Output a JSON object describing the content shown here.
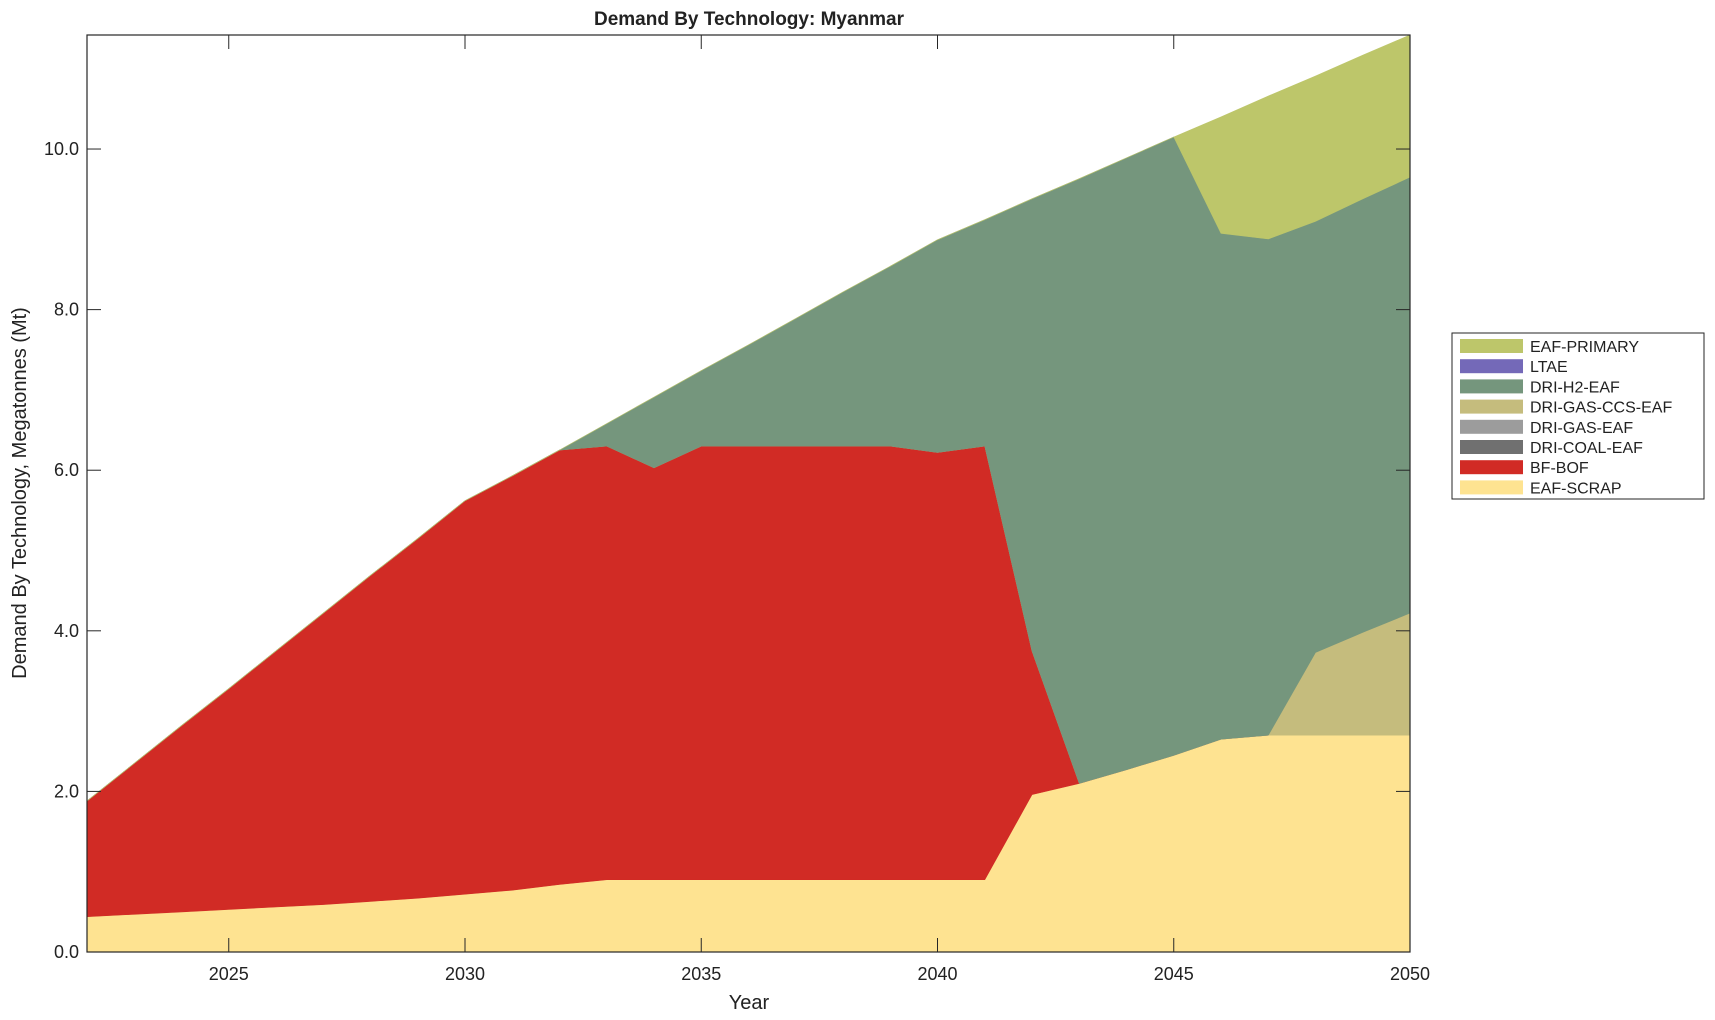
{
  "chart_data": {
    "type": "area",
    "stacked": true,
    "title": "Demand By Technology: Myanmar",
    "xlabel": "Year",
    "ylabel": "Demand By Technology, Megatonnes (Mt)",
    "xlim": [
      2022,
      2050
    ],
    "ylim": [
      0,
      11.42
    ],
    "xticks": [
      2025,
      2030,
      2035,
      2040,
      2045,
      2050
    ],
    "yticks": [
      0,
      2,
      4,
      6,
      8,
      10
    ],
    "ytick_labels": [
      "0.0",
      "2.0",
      "4.0",
      "6.0",
      "8.0",
      "10.0"
    ],
    "grid": false,
    "legend_placement": "outside-right",
    "x": [
      2022,
      2023,
      2024,
      2025,
      2026,
      2027,
      2028,
      2029,
      2030,
      2031,
      2032,
      2033,
      2034,
      2035,
      2036,
      2037,
      2038,
      2039,
      2040,
      2041,
      2042,
      2043,
      2044,
      2045,
      2046,
      2047,
      2048,
      2049,
      2050
    ],
    "series": [
      {
        "name": "EAF-SCRAP",
        "color": "#fee391",
        "values": [
          0.44,
          0.47,
          0.5,
          0.53,
          0.56,
          0.59,
          0.63,
          0.67,
          0.72,
          0.77,
          0.84,
          0.9,
          0.9,
          0.9,
          0.9,
          0.9,
          0.9,
          0.9,
          0.9,
          0.9,
          1.96,
          2.1,
          2.27,
          2.45,
          2.65,
          2.7,
          2.7,
          2.7,
          2.7
        ]
      },
      {
        "name": "BF-BOF",
        "color": "#d12b25",
        "values": [
          1.44,
          1.88,
          2.32,
          2.75,
          3.19,
          3.63,
          4.06,
          4.48,
          4.9,
          5.16,
          5.41,
          5.4,
          5.13,
          5.4,
          5.4,
          5.4,
          5.4,
          5.4,
          5.32,
          5.4,
          1.79,
          0,
          0,
          0,
          0,
          0,
          0,
          0,
          0
        ]
      },
      {
        "name": "DRI-COAL-EAF",
        "color": "#707070",
        "values": [
          0,
          0,
          0,
          0,
          0,
          0,
          0,
          0,
          0,
          0,
          0,
          0,
          0,
          0,
          0,
          0,
          0,
          0,
          0,
          0,
          0,
          0,
          0,
          0,
          0,
          0,
          0,
          0,
          0
        ]
      },
      {
        "name": "DRI-GAS-EAF",
        "color": "#9c9c9c",
        "values": [
          0,
          0,
          0,
          0,
          0,
          0,
          0,
          0,
          0,
          0,
          0,
          0,
          0,
          0,
          0,
          0,
          0,
          0,
          0,
          0,
          0,
          0,
          0,
          0,
          0,
          0,
          0,
          0,
          0
        ]
      },
      {
        "name": "DRI-GAS-CCS-EAF",
        "color": "#c5bc7d",
        "values": [
          0,
          0,
          0,
          0,
          0,
          0,
          0,
          0,
          0,
          0,
          0,
          0,
          0,
          0,
          0,
          0,
          0,
          0,
          0,
          0,
          0,
          0,
          0,
          0,
          0,
          0,
          1.03,
          1.28,
          1.52
        ]
      },
      {
        "name": "DRI-H2-EAF",
        "color": "#75967d",
        "values": [
          0,
          0,
          0,
          0,
          0,
          0,
          0,
          0,
          0,
          0,
          0,
          0.28,
          0.88,
          0.94,
          1.26,
          1.59,
          1.92,
          2.24,
          2.65,
          2.82,
          5.63,
          7.53,
          7.62,
          7.7,
          6.3,
          6.18,
          5.37,
          5.4,
          5.43
        ]
      },
      {
        "name": "LTAE",
        "color": "#7469b8",
        "values": [
          0,
          0,
          0,
          0,
          0,
          0,
          0,
          0,
          0,
          0,
          0,
          0,
          0,
          0,
          0,
          0,
          0,
          0,
          0,
          0,
          0,
          0,
          0,
          0,
          0,
          0,
          0,
          0,
          0
        ]
      },
      {
        "name": "EAF-PRIMARY",
        "color": "#bdc66a",
        "values": [
          0,
          0,
          0,
          0,
          0,
          0,
          0,
          0,
          0,
          0,
          0,
          0,
          0,
          0,
          0,
          0,
          0,
          0,
          0,
          0,
          0,
          0,
          0,
          0,
          1.45,
          1.78,
          1.81,
          1.79,
          1.77
        ]
      }
    ]
  }
}
